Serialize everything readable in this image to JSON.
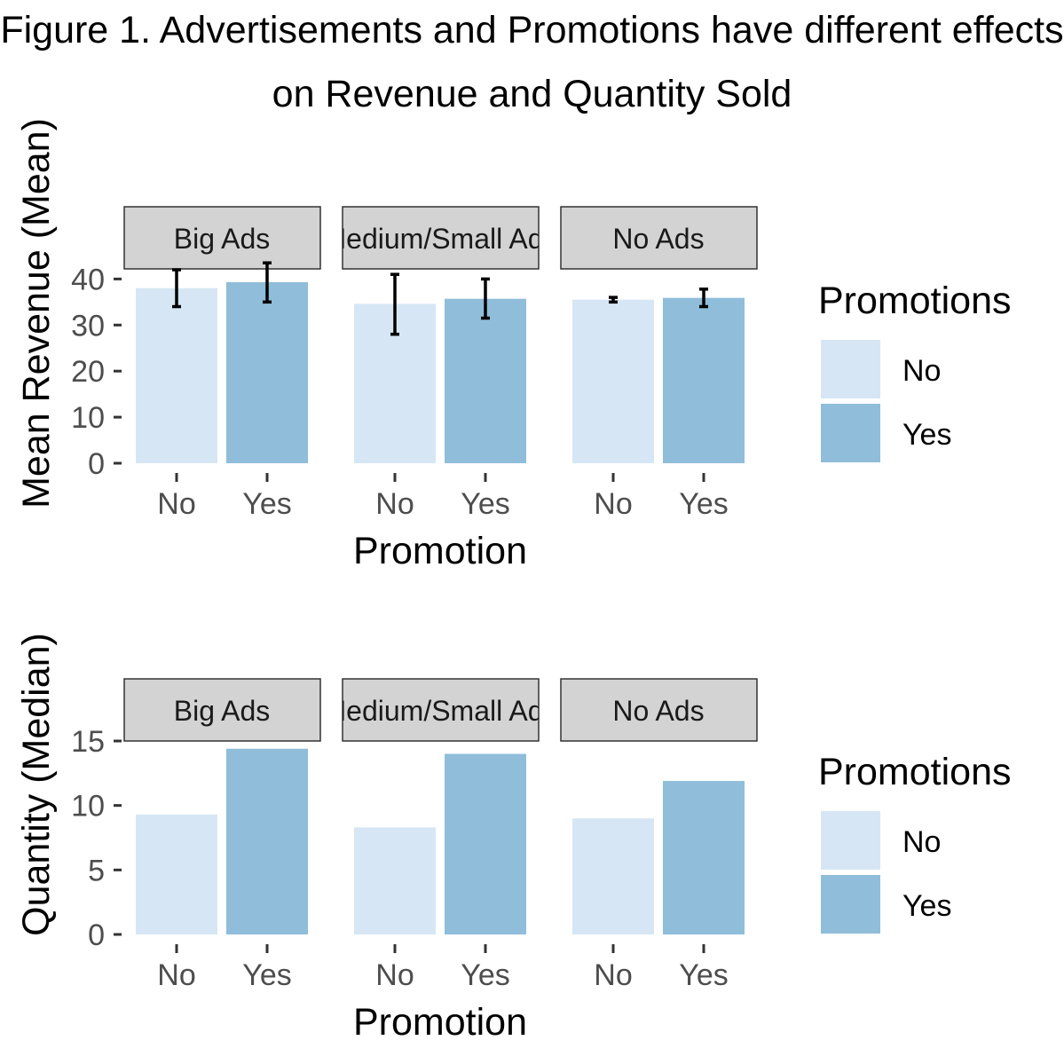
{
  "title_lines": [
    "Figure 1. Advertisements and Promotions have different effects",
    "on Revenue and Quantity Sold"
  ],
  "colors": {
    "no": "#d6e6f4",
    "yes": "#8fbdda",
    "strip_fill": "#d3d3d3",
    "strip_border": "#333333"
  },
  "chart_data": [
    {
      "type": "bar",
      "facets": [
        "Big Ads",
        "Medium/Small Ads",
        "No Ads"
      ],
      "categories": [
        "No",
        "Yes"
      ],
      "xlabel": "Promotion",
      "ylabel": "Mean Revenue (Mean)",
      "ylim": [
        0,
        42
      ],
      "yticks": [
        0,
        10,
        20,
        30,
        40
      ],
      "legend": {
        "title": "Promotions",
        "entries": [
          "No",
          "Yes"
        ],
        "placement": "right"
      },
      "series": [
        {
          "facet": "Big Ads",
          "values": [
            38.0,
            39.3
          ],
          "error_low": [
            34.0,
            35.0
          ],
          "error_high": [
            42.0,
            43.5
          ]
        },
        {
          "facet": "Medium/Small Ads",
          "values": [
            34.6,
            35.7
          ],
          "error_low": [
            28.0,
            31.5
          ],
          "error_high": [
            41.0,
            40.0
          ]
        },
        {
          "facet": "No Ads",
          "values": [
            35.5,
            35.9
          ],
          "error_low": [
            35.0,
            34.0
          ],
          "error_high": [
            36.0,
            37.8
          ]
        }
      ]
    },
    {
      "type": "bar",
      "facets": [
        "Big Ads",
        "Medium/Small Ads",
        "No Ads"
      ],
      "categories": [
        "No",
        "Yes"
      ],
      "xlabel": "Promotion",
      "ylabel": "Quantity (Median)",
      "ylim": [
        0,
        15
      ],
      "yticks": [
        0,
        5,
        10,
        15
      ],
      "legend": {
        "title": "Promotions",
        "entries": [
          "No",
          "Yes"
        ],
        "placement": "right"
      },
      "series": [
        {
          "facet": "Big Ads",
          "values": [
            9.3,
            14.4
          ]
        },
        {
          "facet": "Medium/Small Ads",
          "values": [
            8.3,
            14.0
          ]
        },
        {
          "facet": "No Ads",
          "values": [
            9.0,
            11.9
          ]
        }
      ]
    }
  ]
}
